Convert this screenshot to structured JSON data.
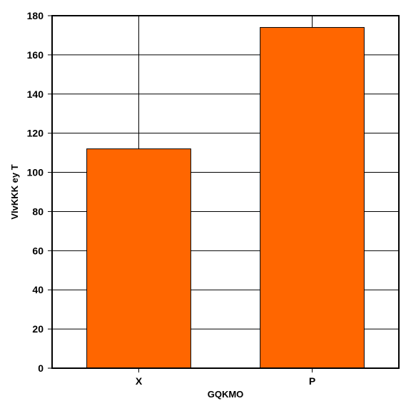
{
  "chart_data": {
    "type": "bar",
    "categories": [
      "X",
      "P"
    ],
    "values": [
      112,
      174
    ],
    "title": "",
    "xlabel": "GQKMO",
    "ylabel": "VIvKKK ey T",
    "ylim": [
      0,
      180
    ],
    "yticks": [
      0,
      20,
      40,
      60,
      80,
      100,
      120,
      140,
      160,
      180
    ],
    "grid": true,
    "legend": "none",
    "colors": {
      "bar": "#ff6600",
      "bar_outline": "#000000",
      "grid": "#000000",
      "background": "#ffffff"
    }
  }
}
